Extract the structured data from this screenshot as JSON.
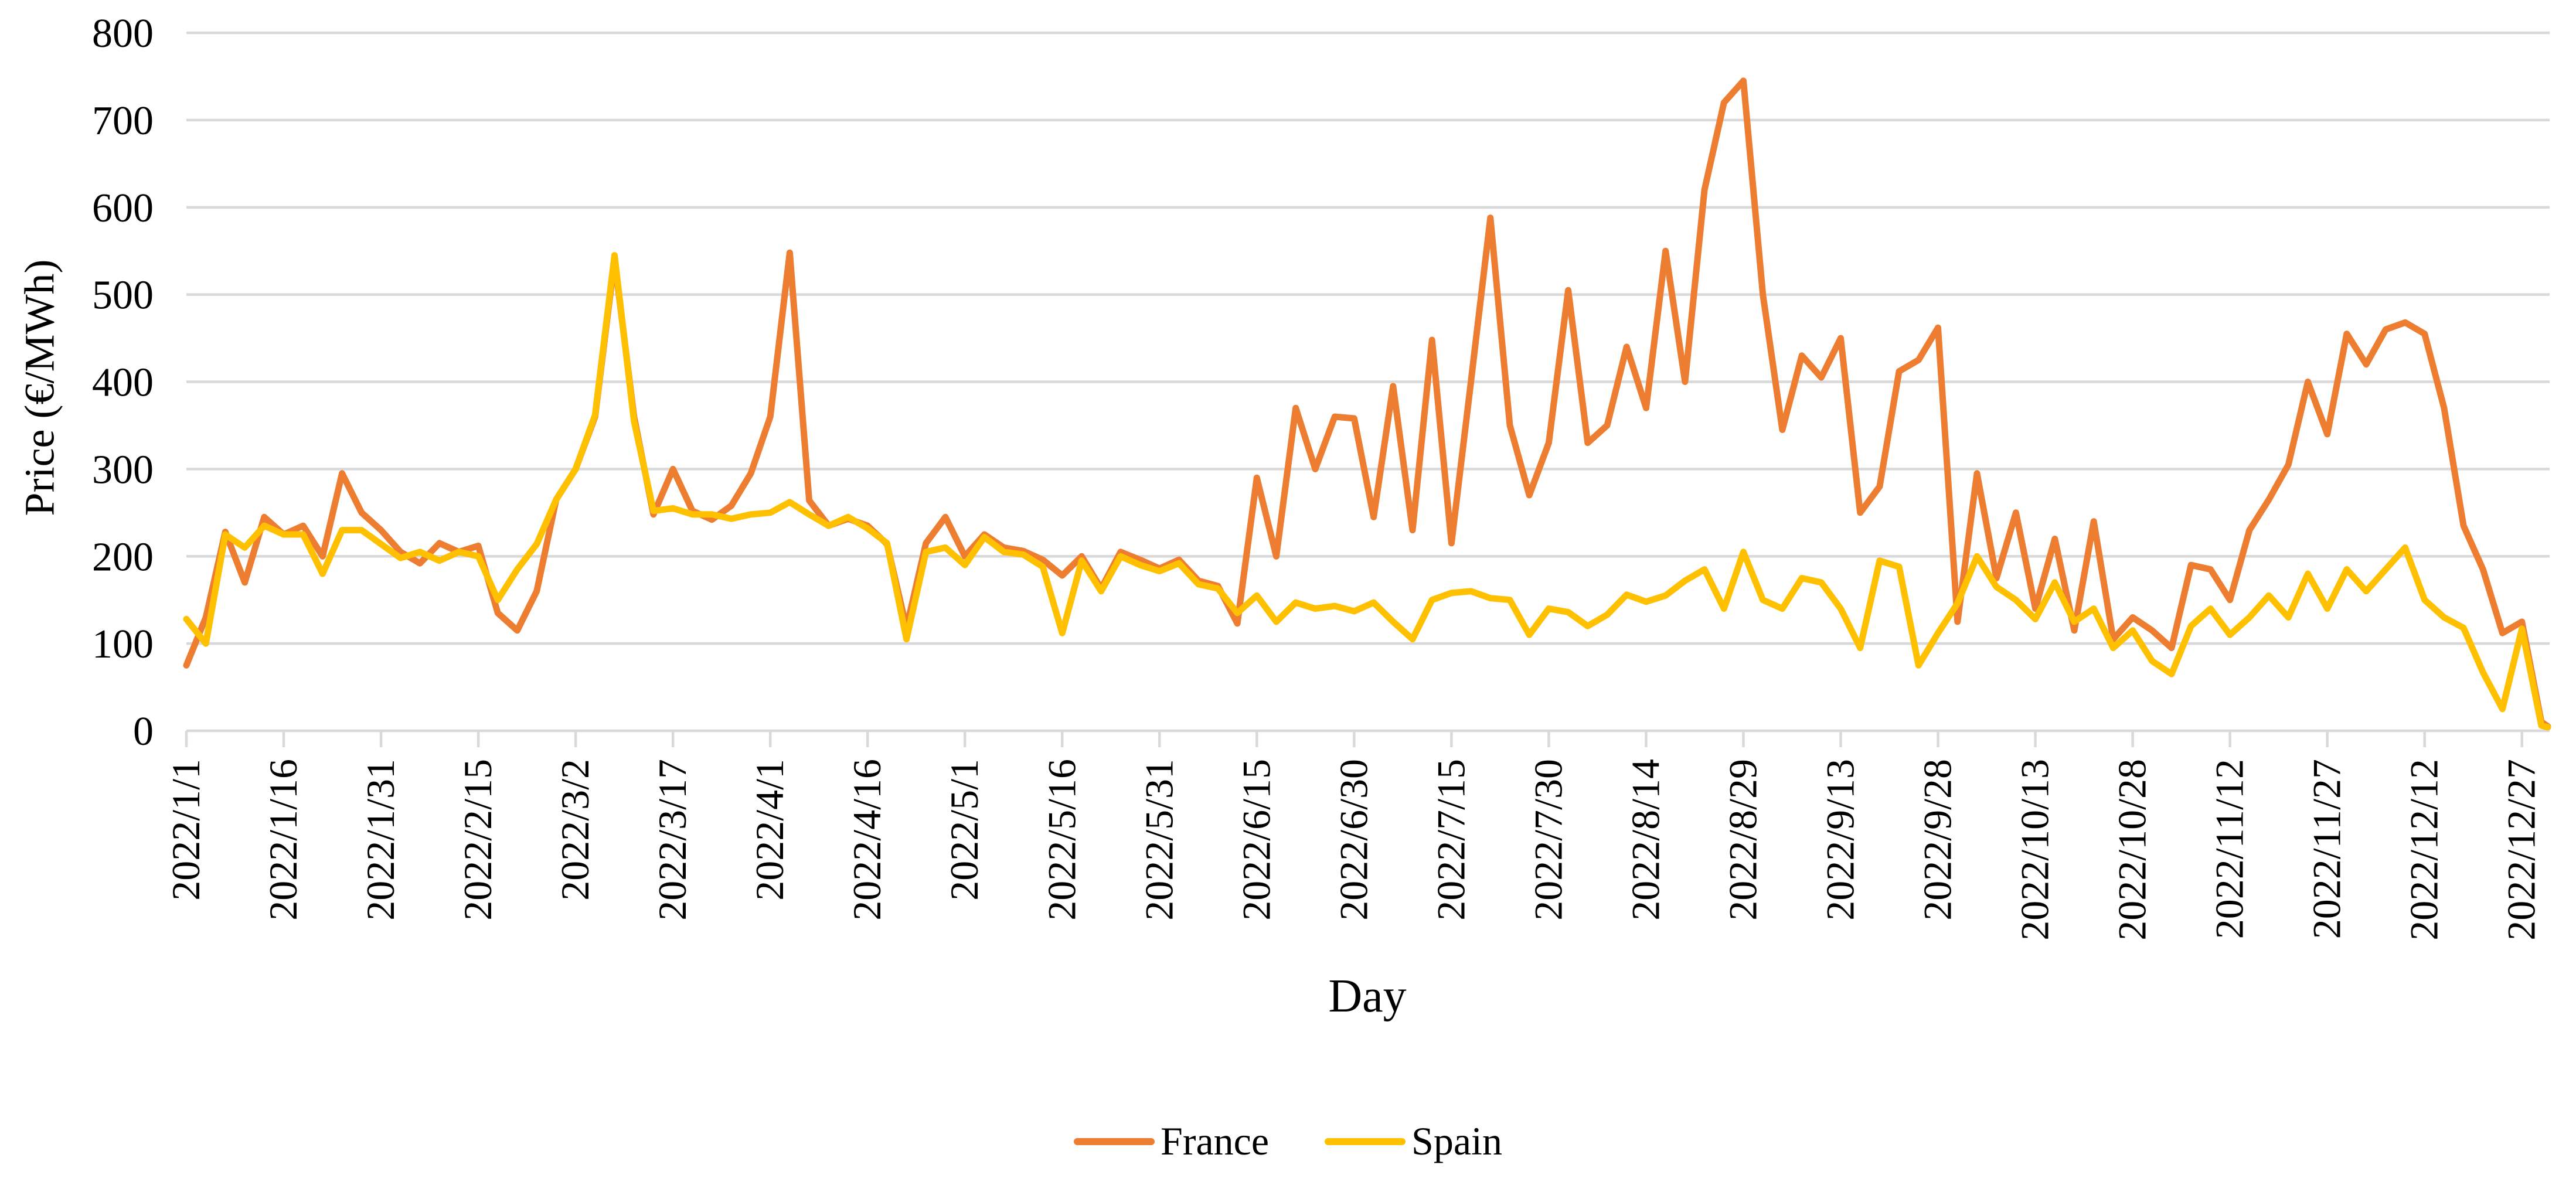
{
  "chart_data": {
    "type": "line",
    "title": "",
    "xlabel": "Day",
    "ylabel": "Price (€/MWh)",
    "ylim": [
      0,
      800
    ],
    "yticks": [
      0,
      100,
      200,
      300,
      400,
      500,
      600,
      700,
      800
    ],
    "grid": true,
    "grid_color": "#D9D9D9",
    "legend_position": "bottom",
    "xticklabels": [
      "2022/1/1",
      "2022/1/16",
      "2022/1/31",
      "2022/2/15",
      "2022/3/2",
      "2022/3/17",
      "2022/4/1",
      "2022/4/16",
      "2022/5/1",
      "2022/5/16",
      "2022/5/31",
      "2022/6/15",
      "2022/6/30",
      "2022/7/15",
      "2022/7/30",
      "2022/8/14",
      "2022/8/29",
      "2022/9/13",
      "2022/9/28",
      "2022/10/13",
      "2022/10/28",
      "2022/11/12",
      "2022/11/27",
      "2022/12/12",
      "2022/12/27"
    ],
    "x": [
      "1/1",
      "1/4",
      "1/7",
      "1/10",
      "1/13",
      "1/16",
      "1/19",
      "1/22",
      "1/25",
      "1/28",
      "1/31",
      "2/3",
      "2/6",
      "2/9",
      "2/12",
      "2/15",
      "2/18",
      "2/21",
      "2/24",
      "2/27",
      "3/2",
      "3/5",
      "3/8",
      "3/11",
      "3/14",
      "3/17",
      "3/20",
      "3/23",
      "3/26",
      "3/29",
      "4/1",
      "4/4",
      "4/7",
      "4/10",
      "4/13",
      "4/16",
      "4/19",
      "4/22",
      "4/25",
      "4/28",
      "5/1",
      "5/4",
      "5/7",
      "5/10",
      "5/13",
      "5/16",
      "5/19",
      "5/22",
      "5/25",
      "5/28",
      "5/31",
      "6/3",
      "6/6",
      "6/9",
      "6/12",
      "6/15",
      "6/18",
      "6/21",
      "6/24",
      "6/27",
      "6/30",
      "7/3",
      "7/6",
      "7/9",
      "7/12",
      "7/15",
      "7/18",
      "7/21",
      "7/24",
      "7/27",
      "7/30",
      "8/2",
      "8/5",
      "8/8",
      "8/11",
      "8/14",
      "8/17",
      "8/20",
      "8/23",
      "8/26",
      "8/29",
      "9/1",
      "9/4",
      "9/7",
      "9/10",
      "9/13",
      "9/16",
      "9/19",
      "9/22",
      "9/25",
      "9/28",
      "10/1",
      "10/4",
      "10/7",
      "10/10",
      "10/13",
      "10/16",
      "10/19",
      "10/22",
      "10/25",
      "10/28",
      "10/31",
      "11/3",
      "11/6",
      "11/9",
      "11/12",
      "11/15",
      "11/18",
      "11/21",
      "11/24",
      "11/27",
      "11/30",
      "12/3",
      "12/6",
      "12/9",
      "12/12",
      "12/15",
      "12/18",
      "12/21",
      "12/24",
      "12/27",
      "12/30",
      "12/31"
    ],
    "series": [
      {
        "name": "France",
        "color": "#ED7D31",
        "values": [
          75,
          130,
          228,
          170,
          245,
          225,
          235,
          200,
          295,
          250,
          230,
          205,
          192,
          215,
          205,
          212,
          135,
          115,
          160,
          265,
          300,
          360,
          540,
          360,
          248,
          300,
          252,
          242,
          258,
          295,
          360,
          548,
          264,
          235,
          243,
          235,
          214,
          118,
          215,
          245,
          200,
          225,
          210,
          206,
          196,
          178,
          200,
          163,
          205,
          196,
          186,
          196,
          172,
          166,
          123,
          290,
          200,
          370,
          300,
          360,
          358,
          245,
          395,
          230,
          448,
          215,
          400,
          588,
          350,
          270,
          330,
          505,
          330,
          350,
          440,
          370,
          550,
          400,
          620,
          720,
          745,
          500,
          345,
          430,
          405,
          450,
          250,
          280,
          412,
          425,
          462,
          125,
          295,
          175,
          250,
          140,
          220,
          115,
          240,
          105,
          130,
          115,
          95,
          190,
          185,
          150,
          230,
          265,
          305,
          400,
          340,
          455,
          420,
          460,
          468,
          455,
          370,
          235,
          185,
          112,
          125,
          10,
          5
        ]
      },
      {
        "name": "Spain",
        "color": "#FFC000",
        "values": [
          128,
          100,
          225,
          210,
          235,
          225,
          225,
          180,
          230,
          230,
          214,
          198,
          205,
          195,
          205,
          200,
          150,
          185,
          214,
          265,
          300,
          362,
          545,
          355,
          252,
          255,
          248,
          248,
          243,
          248,
          250,
          262,
          248,
          235,
          245,
          232,
          215,
          105,
          205,
          210,
          190,
          222,
          205,
          202,
          188,
          112,
          195,
          160,
          200,
          190,
          183,
          192,
          168,
          163,
          135,
          155,
          125,
          147,
          140,
          143,
          137,
          147,
          125,
          105,
          150,
          158,
          160,
          152,
          150,
          110,
          140,
          136,
          120,
          133,
          156,
          148,
          155,
          172,
          185,
          140,
          205,
          150,
          140,
          175,
          170,
          140,
          95,
          195,
          188,
          75,
          112,
          146,
          200,
          165,
          150,
          128,
          170,
          125,
          140,
          95,
          115,
          80,
          65,
          120,
          140,
          110,
          130,
          155,
          130,
          180,
          140,
          185,
          160,
          185,
          210,
          150,
          130,
          118,
          67,
          25,
          117,
          6,
          4
        ]
      }
    ]
  },
  "legend": {
    "france_label": "France",
    "spain_label": "Spain"
  },
  "axis": {
    "x_title": "Day",
    "y_title": "Price (€/MWh)"
  },
  "icons": {
    "france_swatch": "orange-line-swatch",
    "spain_swatch": "gold-line-swatch"
  }
}
